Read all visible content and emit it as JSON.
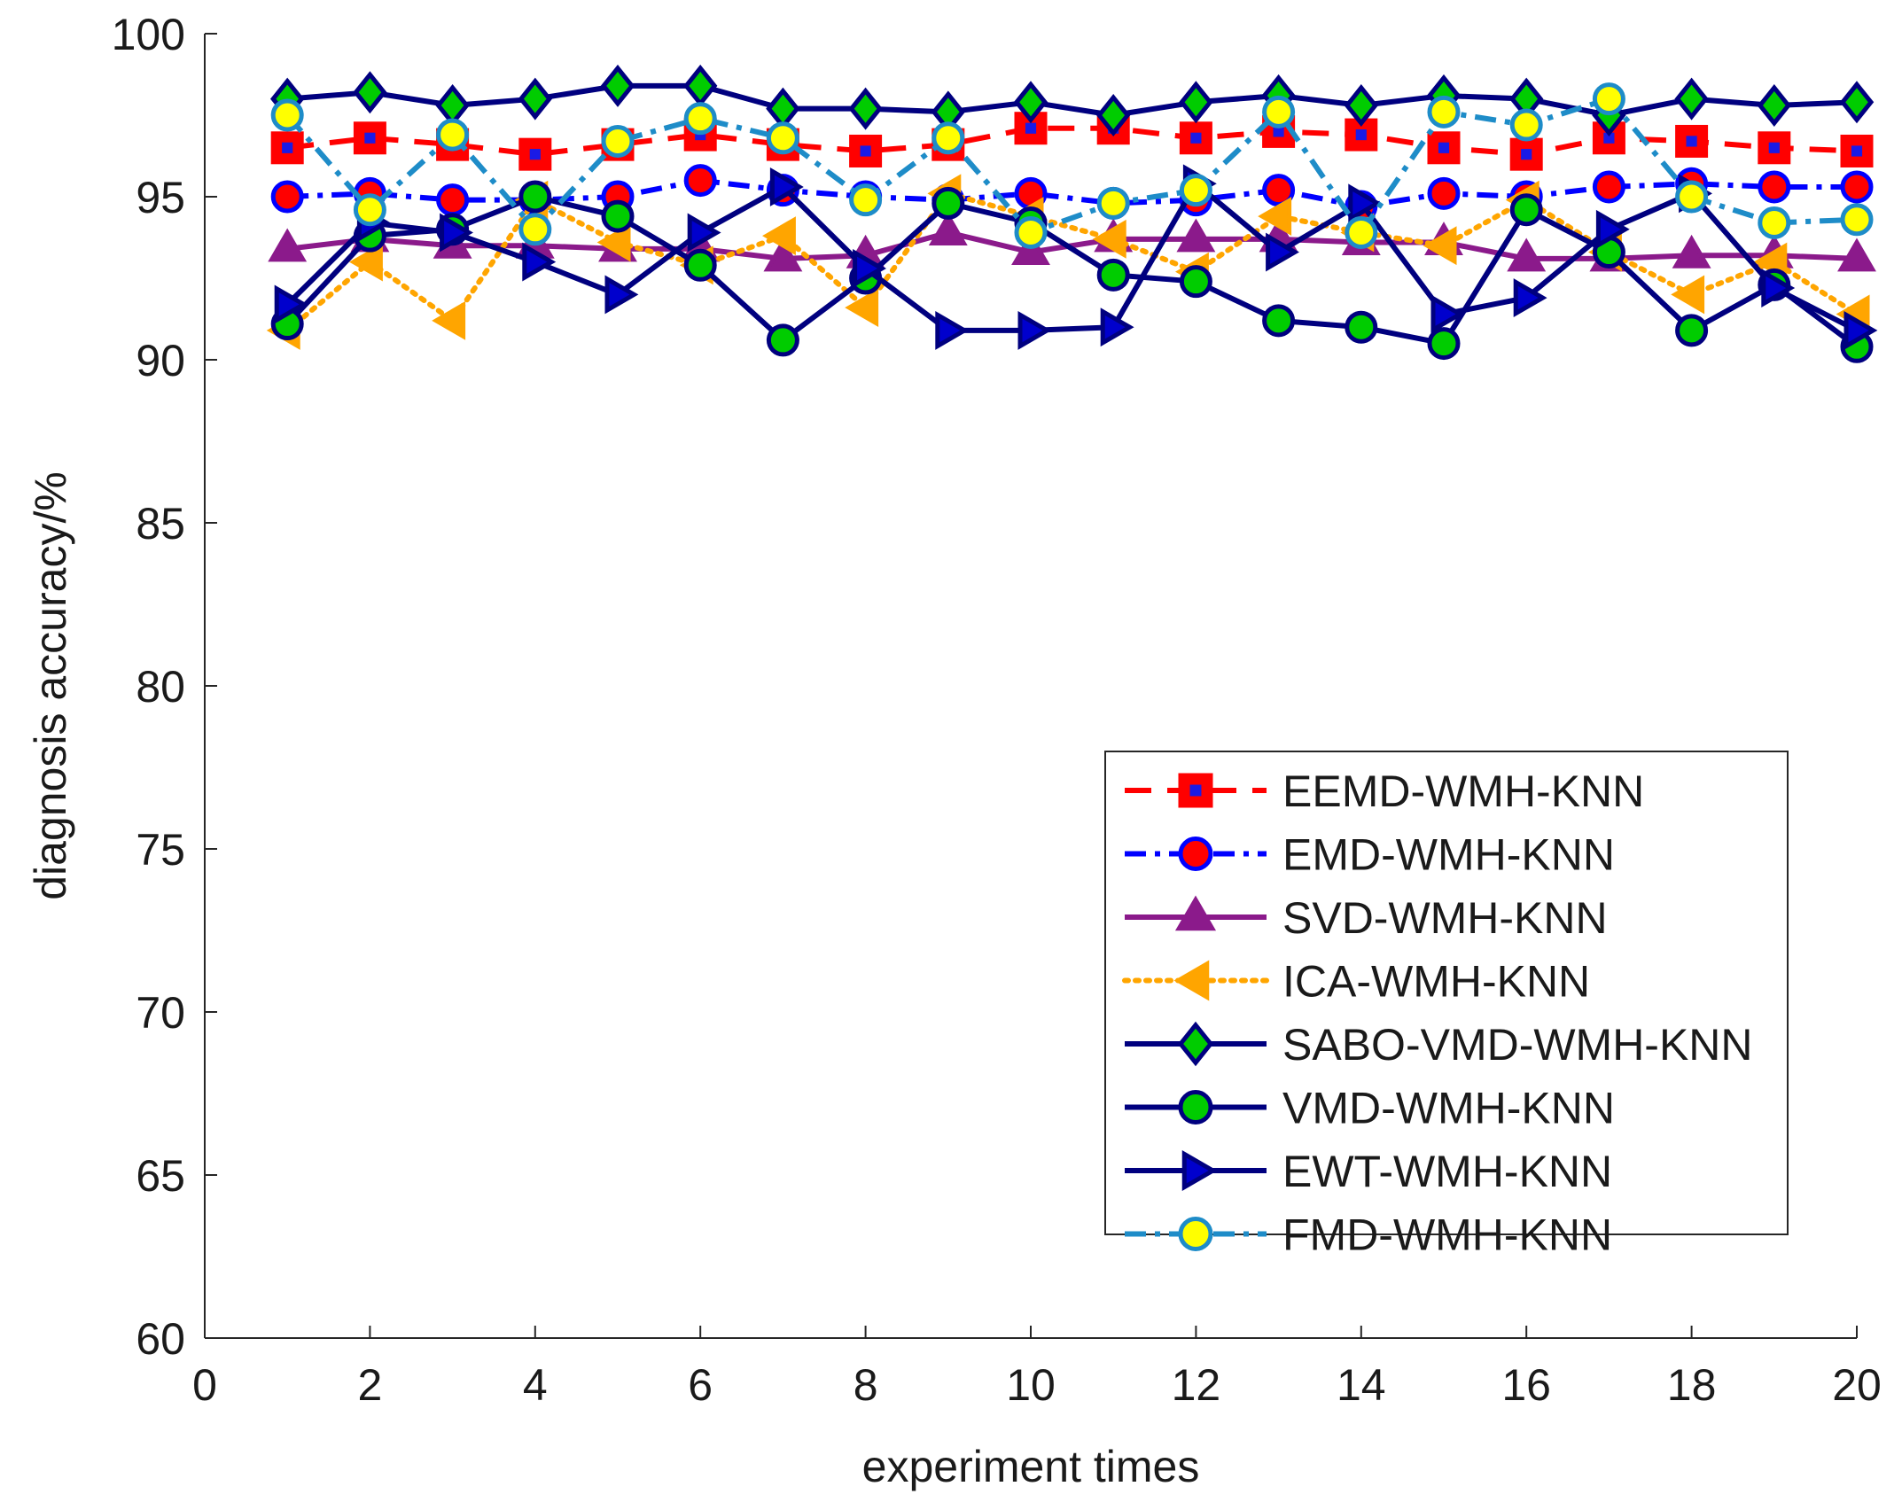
{
  "chart_data": {
    "type": "line",
    "title": "",
    "xlabel": "experiment times",
    "ylabel": "diagnosis accuracy/%",
    "xlim": [
      0,
      20
    ],
    "ylim": [
      60,
      100
    ],
    "xticks": [
      0,
      2,
      4,
      6,
      8,
      10,
      12,
      14,
      16,
      18,
      20
    ],
    "yticks": [
      60,
      65,
      70,
      75,
      80,
      85,
      90,
      95,
      100
    ],
    "grid": false,
    "legend_position": "lower-right",
    "x": [
      1,
      2,
      3,
      4,
      5,
      6,
      7,
      8,
      9,
      10,
      11,
      12,
      13,
      14,
      15,
      16,
      17,
      18,
      19,
      20
    ],
    "series": [
      {
        "name": "EEMD-WMH-KNN",
        "line_color": "#ff0000",
        "marker_fill": "#ff0000",
        "marker_edge": "#ff0000",
        "center_dot": "#1a1ae6",
        "dash": "dashed",
        "marker": "square",
        "values": [
          96.5,
          96.8,
          96.6,
          96.3,
          96.6,
          96.9,
          96.6,
          96.4,
          96.6,
          97.1,
          97.1,
          96.8,
          97.0,
          96.9,
          96.5,
          96.3,
          96.8,
          96.7,
          96.5,
          96.4
        ]
      },
      {
        "name": "EMD-WMH-KNN",
        "line_color": "#0000ff",
        "marker_fill": "#ff0000",
        "marker_edge": "#0000ff",
        "dash": "dashdot",
        "marker": "circle",
        "values": [
          95.0,
          95.1,
          94.9,
          94.9,
          95.0,
          95.5,
          95.2,
          95.0,
          94.9,
          95.1,
          94.8,
          94.9,
          95.2,
          94.7,
          95.1,
          95.0,
          95.3,
          95.4,
          95.3,
          95.3
        ]
      },
      {
        "name": "SVD-WMH-KNN",
        "line_color": "#8b1a8b",
        "marker_fill": "#8b1a8b",
        "marker_edge": "#8b1a8b",
        "dash": "solid",
        "marker": "triangle-up",
        "values": [
          93.4,
          93.7,
          93.5,
          93.5,
          93.4,
          93.4,
          93.1,
          93.2,
          93.9,
          93.3,
          93.7,
          93.7,
          93.7,
          93.6,
          93.6,
          93.1,
          93.1,
          93.2,
          93.2,
          93.1
        ]
      },
      {
        "name": "ICA-WMH-KNN",
        "line_color": "#ffa500",
        "marker_fill": "#ffa500",
        "marker_edge": "#ffa500",
        "dash": "dotted",
        "marker": "triangle-left",
        "values": [
          90.9,
          93.0,
          91.2,
          94.9,
          93.6,
          92.9,
          93.8,
          91.6,
          95.1,
          94.4,
          93.7,
          92.7,
          94.4,
          93.9,
          93.5,
          94.9,
          93.3,
          92.0,
          93.0,
          91.4
        ]
      },
      {
        "name": "SABO-VMD-WMH-KNN",
        "line_color": "#00007f",
        "marker_fill": "#00cc00",
        "marker_edge": "#00007f",
        "dash": "solid",
        "marker": "diamond",
        "values": [
          98.0,
          98.2,
          97.8,
          98.0,
          98.4,
          98.4,
          97.7,
          97.7,
          97.6,
          97.9,
          97.5,
          97.9,
          98.1,
          97.8,
          98.1,
          98.0,
          97.5,
          98.0,
          97.8,
          97.9
        ]
      },
      {
        "name": "VMD-WMH-KNN",
        "line_color": "#00007f",
        "marker_fill": "#00cc00",
        "marker_edge": "#00007f",
        "dash": "solid",
        "marker": "circle",
        "values": [
          91.1,
          93.8,
          94.0,
          95.0,
          94.4,
          92.9,
          90.6,
          92.5,
          94.8,
          94.2,
          92.6,
          92.4,
          91.2,
          91.0,
          90.5,
          94.6,
          93.3,
          90.9,
          92.3,
          90.4
        ]
      },
      {
        "name": "EWT-WMH-KNN",
        "line_color": "#00007f",
        "marker_fill": "#0000cd",
        "marker_edge": "#00007f",
        "dash": "solid",
        "marker": "triangle-right",
        "values": [
          91.7,
          94.2,
          93.9,
          93.0,
          92.0,
          93.9,
          95.3,
          92.8,
          90.9,
          90.9,
          91.0,
          95.4,
          93.3,
          94.8,
          91.4,
          91.9,
          94.0,
          95.1,
          92.2,
          90.9
        ]
      },
      {
        "name": "FMD-WMH-KNN",
        "line_color": "#1e8cc8",
        "marker_fill": "#ffff00",
        "marker_edge": "#1e8cc8",
        "dash": "dashdot",
        "marker": "circle",
        "values": [
          97.5,
          94.6,
          96.9,
          94.0,
          96.7,
          97.4,
          96.8,
          94.9,
          96.8,
          93.9,
          94.8,
          95.2,
          97.6,
          93.9,
          97.6,
          97.2,
          98.0,
          95.0,
          94.2,
          94.3
        ]
      }
    ]
  }
}
